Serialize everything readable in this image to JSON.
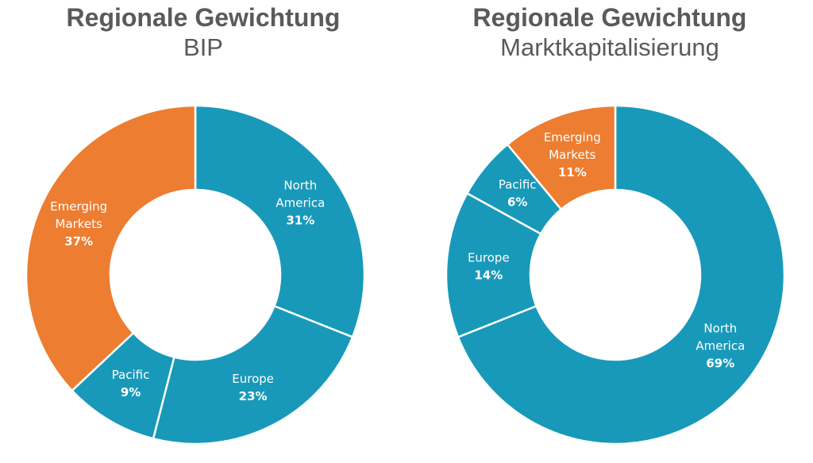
{
  "chart_data": [
    {
      "type": "pie",
      "donut": true,
      "title": "Regionale Gewichtung",
      "subtitle": "BIP",
      "categories": [
        "North America",
        "Europe",
        "Pacific",
        "Emerging Markets"
      ],
      "values": [
        31,
        23,
        9,
        37
      ],
      "value_labels": [
        "31%",
        "23%",
        "9%",
        "37%"
      ],
      "colors": [
        "#1899BA",
        "#1899BA",
        "#1899BA",
        "#ED7D31"
      ]
    },
    {
      "type": "pie",
      "donut": true,
      "title": "Regionale Gewichtung",
      "subtitle": "Marktkapitalisierung",
      "categories": [
        "North America",
        "Europe",
        "Pacific",
        "Emerging Markets"
      ],
      "values": [
        69,
        14,
        6,
        11
      ],
      "value_labels": [
        "69%",
        "14%",
        "6%",
        "11%"
      ],
      "colors": [
        "#1899BA",
        "#1899BA",
        "#1899BA",
        "#ED7D31"
      ]
    }
  ]
}
